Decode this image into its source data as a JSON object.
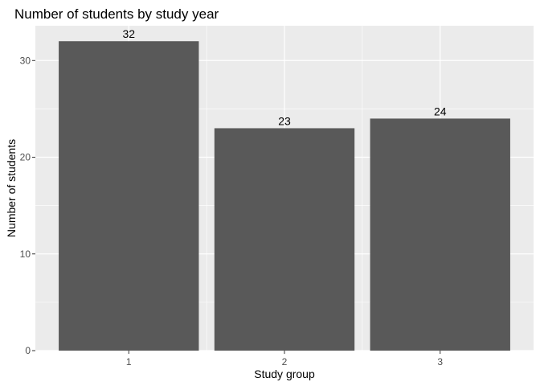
{
  "chart_data": {
    "type": "bar",
    "title": "Number of students by study year",
    "xlabel": "Study group",
    "ylabel": "Number of students",
    "categories": [
      "1",
      "2",
      "3"
    ],
    "values": [
      32,
      23,
      24
    ],
    "data_labels": [
      "32",
      "23",
      "24"
    ],
    "yticks": [
      0,
      10,
      20,
      30
    ],
    "ytick_labels": [
      "0",
      "10",
      "20",
      "30"
    ],
    "ylim": [
      0,
      33.6
    ],
    "grid": true,
    "legend": "none",
    "colors": {
      "bar": "#595959",
      "panel": "#ebebeb",
      "grid": "#ffffff"
    }
  }
}
